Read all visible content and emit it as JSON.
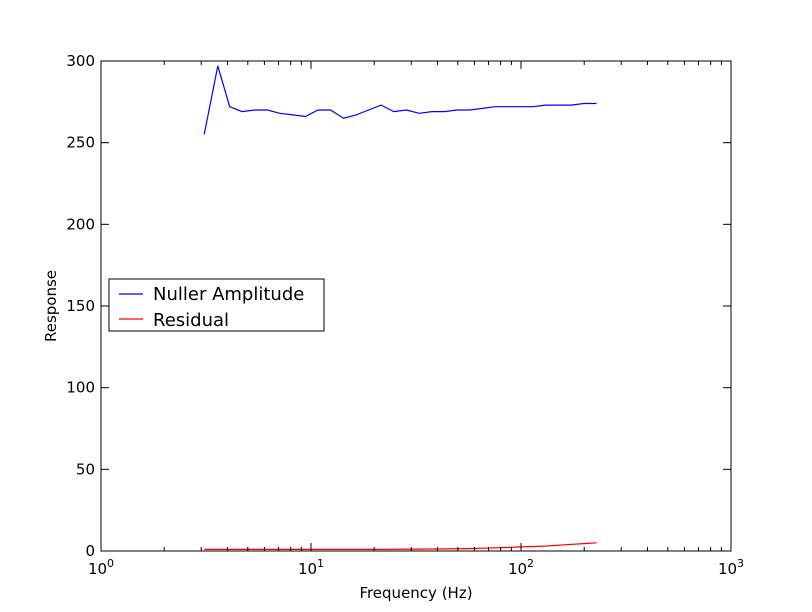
{
  "chart_data": {
    "type": "line",
    "title": "",
    "xlabel": "Frequency (Hz)",
    "ylabel": "Response",
    "x_scale": "log",
    "xlim": [
      1,
      1000
    ],
    "ylim": [
      0,
      300
    ],
    "x_ticks": [
      {
        "value": 1,
        "base": "10",
        "exp": "0"
      },
      {
        "value": 10,
        "base": "10",
        "exp": "1"
      },
      {
        "value": 100,
        "base": "10",
        "exp": "2"
      },
      {
        "value": 1000,
        "base": "10",
        "exp": "3"
      }
    ],
    "y_ticks": [
      0,
      50,
      100,
      150,
      200,
      250,
      300
    ],
    "grid": false,
    "legend_position": "center-left",
    "series": [
      {
        "name": "Nuller Amplitude",
        "color": "#0000ff",
        "x": [
          3.1,
          3.6,
          4.1,
          4.7,
          5.4,
          6.2,
          7.1,
          8.2,
          9.4,
          10.8,
          12.4,
          14.3,
          16.4,
          18.8,
          21.6,
          24.8,
          28.5,
          32.7,
          37.6,
          43.2,
          49.6,
          57.0,
          65.5,
          75.2,
          86.4,
          99.3,
          114,
          131,
          151,
          173,
          199,
          229
        ],
        "y": [
          255,
          297,
          272,
          269,
          270,
          270,
          268,
          267,
          266,
          270,
          270,
          265,
          267,
          270,
          273,
          269,
          270,
          268,
          269,
          269,
          270,
          270,
          271,
          272,
          272,
          272,
          272,
          273,
          273,
          273,
          274,
          274
        ]
      },
      {
        "name": "Residual",
        "color": "#ff0000",
        "x": [
          3.1,
          5,
          10,
          20,
          40,
          60,
          80,
          100,
          130,
          160,
          200,
          229
        ],
        "y": [
          1,
          1,
          1,
          1,
          1.2,
          1.5,
          2,
          2.5,
          3,
          3.8,
          4.5,
          5
        ]
      }
    ]
  }
}
